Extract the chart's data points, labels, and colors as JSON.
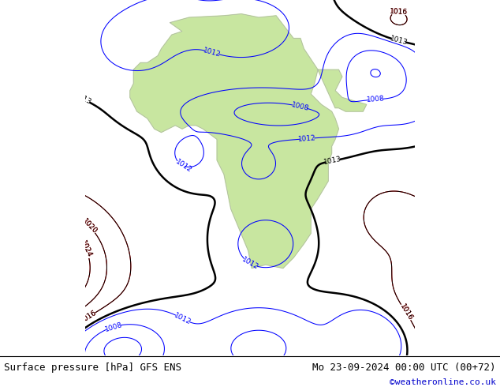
{
  "title_left": "Surface pressure [hPa] GFS ENS",
  "title_right": "Mo 23-09-2024 00:00 UTC (00+72)",
  "credit": "©weatheronline.co.uk",
  "land_color": "#c8e6a0",
  "sea_color": "#d8d8d8",
  "border_color": "#aaaaaa",
  "label_fontsize": 6.5,
  "title_fontsize": 9,
  "credit_fontsize": 8,
  "figsize": [
    6.34,
    4.9
  ],
  "dpi": 100,
  "lon_min": -30,
  "lon_max": 65,
  "lat_min": -60,
  "lat_max": 42
}
